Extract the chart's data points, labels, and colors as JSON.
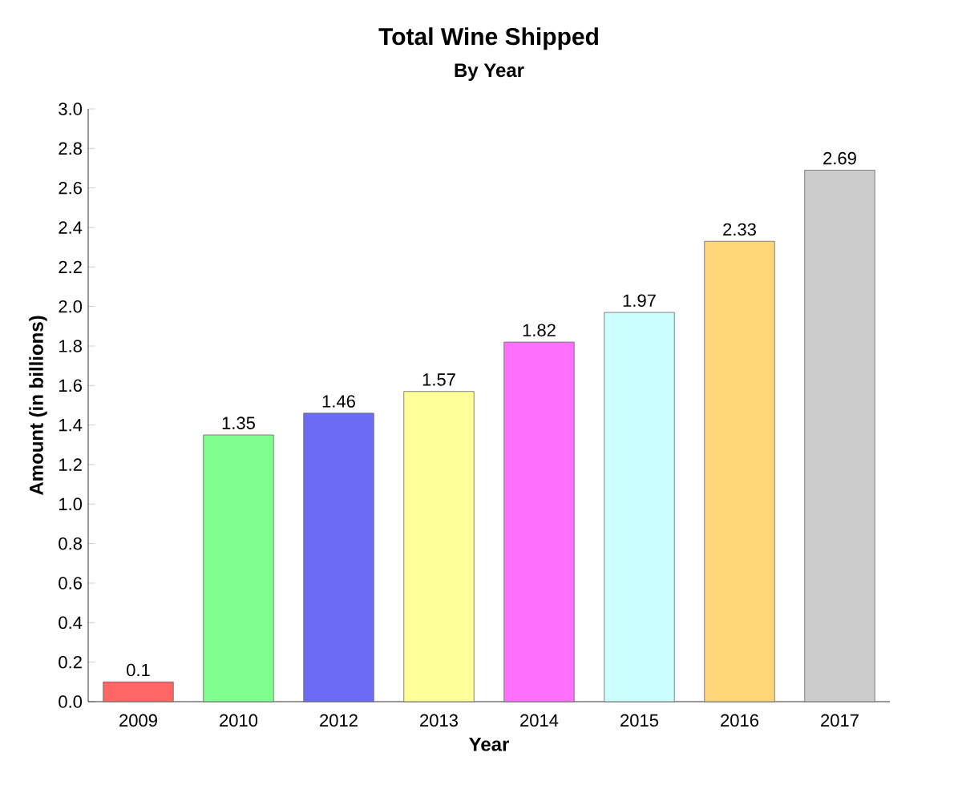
{
  "chart_data": {
    "type": "bar",
    "title": "Total Wine Shipped",
    "subtitle": "By Year",
    "xlabel": "Year",
    "ylabel": "Amount (in billions)",
    "categories": [
      "2009",
      "2010",
      "2012",
      "2013",
      "2014",
      "2015",
      "2016",
      "2017"
    ],
    "values": [
      0.1,
      1.35,
      1.46,
      1.57,
      1.82,
      1.97,
      2.33,
      2.69
    ],
    "colors": [
      "#ff6666",
      "#80ff90",
      "#6b6bf5",
      "#ffff99",
      "#ff70ff",
      "#ccffff",
      "#ffd77a",
      "#cccccc"
    ],
    "data_labels": true,
    "grid": false,
    "ylim": [
      0,
      3.0
    ],
    "yticks": [
      {
        "value": 0,
        "label": "0.0"
      },
      {
        "value": 0.2,
        "label": "0.2"
      },
      {
        "value": 0.4,
        "label": "0.4"
      },
      {
        "value": 0.6,
        "label": "0.6"
      },
      {
        "value": 0.8,
        "label": "0.8"
      },
      {
        "value": 1.0,
        "label": "1.0"
      },
      {
        "value": 1.2,
        "label": "1.2"
      },
      {
        "value": 1.4,
        "label": "1.4"
      },
      {
        "value": 1.6,
        "label": "1.6"
      },
      {
        "value": 1.8,
        "label": "1.8"
      },
      {
        "value": 2.0,
        "label": "2.0"
      },
      {
        "value": 2.2,
        "label": "2.2"
      },
      {
        "value": 2.4,
        "label": "2.4"
      },
      {
        "value": 2.6,
        "label": "2.6"
      },
      {
        "value": 2.8,
        "label": "2.8"
      },
      {
        "value": 3.0,
        "label": "3.0"
      }
    ]
  }
}
